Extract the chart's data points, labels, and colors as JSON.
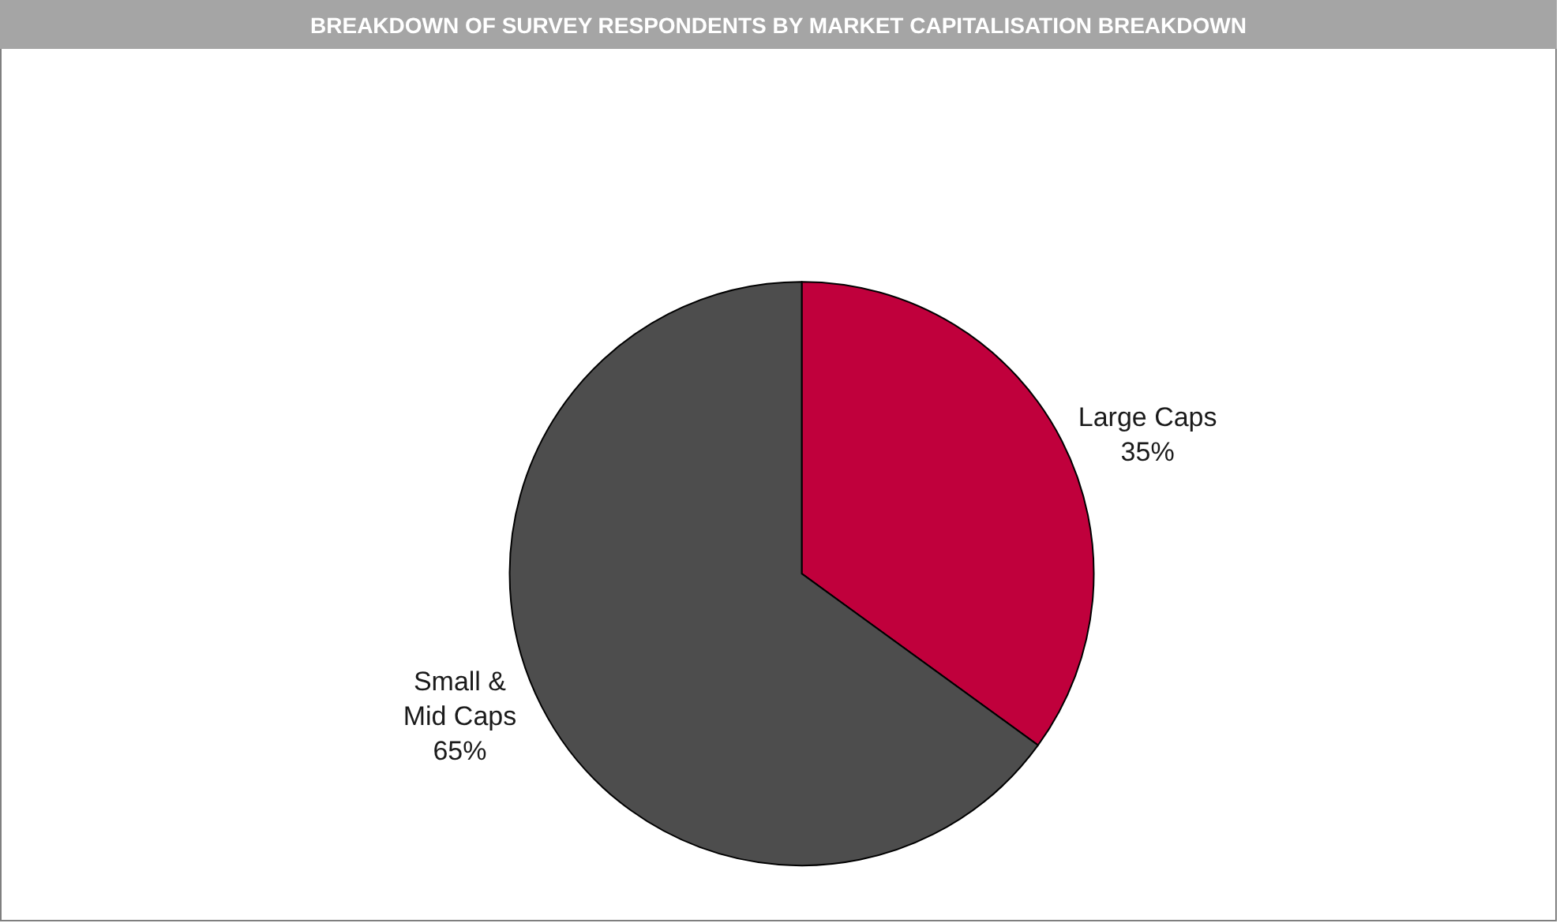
{
  "chart_data": {
    "type": "pie",
    "title": "BREAKDOWN OF SURVEY RESPONDENTS BY MARKET CAPITALISATION BREAKDOWN",
    "categories": [
      "Large Caps",
      "Small & Mid Caps"
    ],
    "values": [
      35,
      65
    ],
    "value_labels": [
      "35%",
      "65%"
    ],
    "colors": [
      "#c0003c",
      "#4d4d4d"
    ],
    "legend": false
  }
}
